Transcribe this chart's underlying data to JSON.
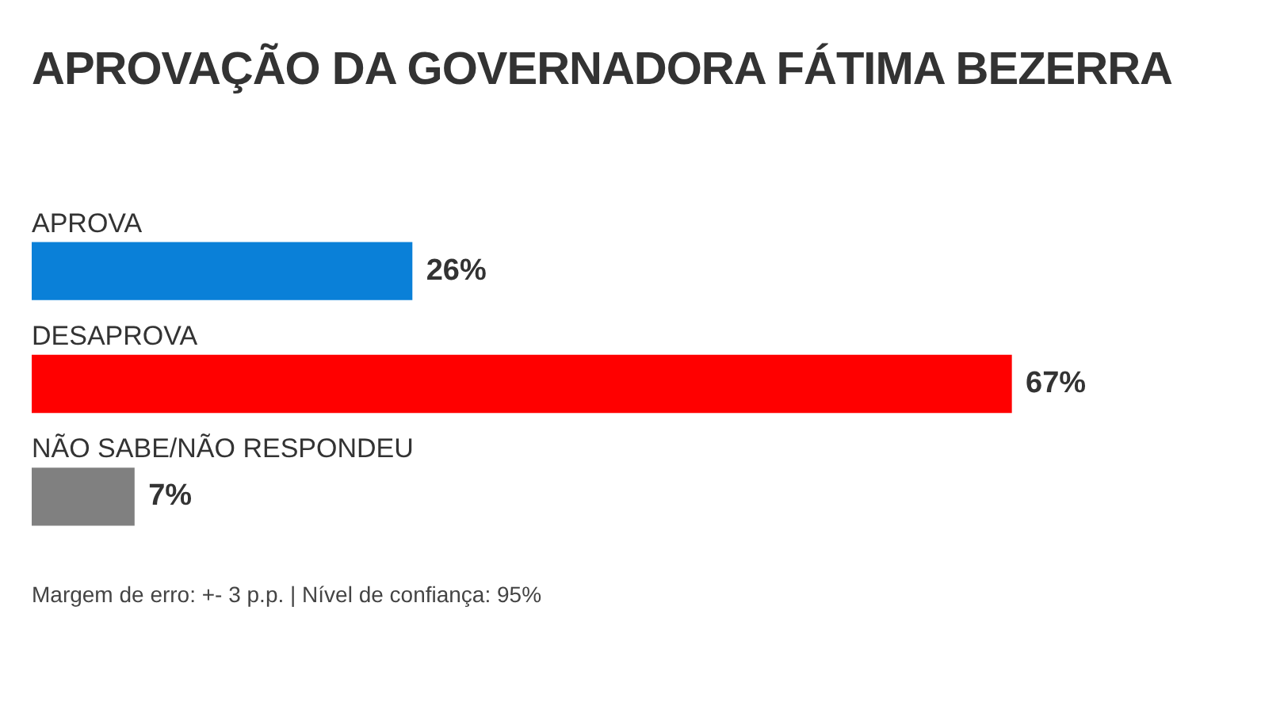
{
  "chart_data": {
    "type": "bar",
    "orientation": "horizontal",
    "title": "APROVAÇÃO DA GOVERNADORA FÁTIMA BEZERRA",
    "categories": [
      "APROVA",
      "DESAPROVA",
      "NÃO SABE/NÃO RESPONDEU"
    ],
    "values": [
      26,
      67,
      7
    ],
    "colors": [
      "#0a80d8",
      "#ff0000",
      "#808080"
    ],
    "value_labels": [
      "26%",
      "67%",
      "7%"
    ],
    "annotations": [
      "Margem de erro: +- 3 p.p. | Nível de confiança: 95%"
    ]
  }
}
